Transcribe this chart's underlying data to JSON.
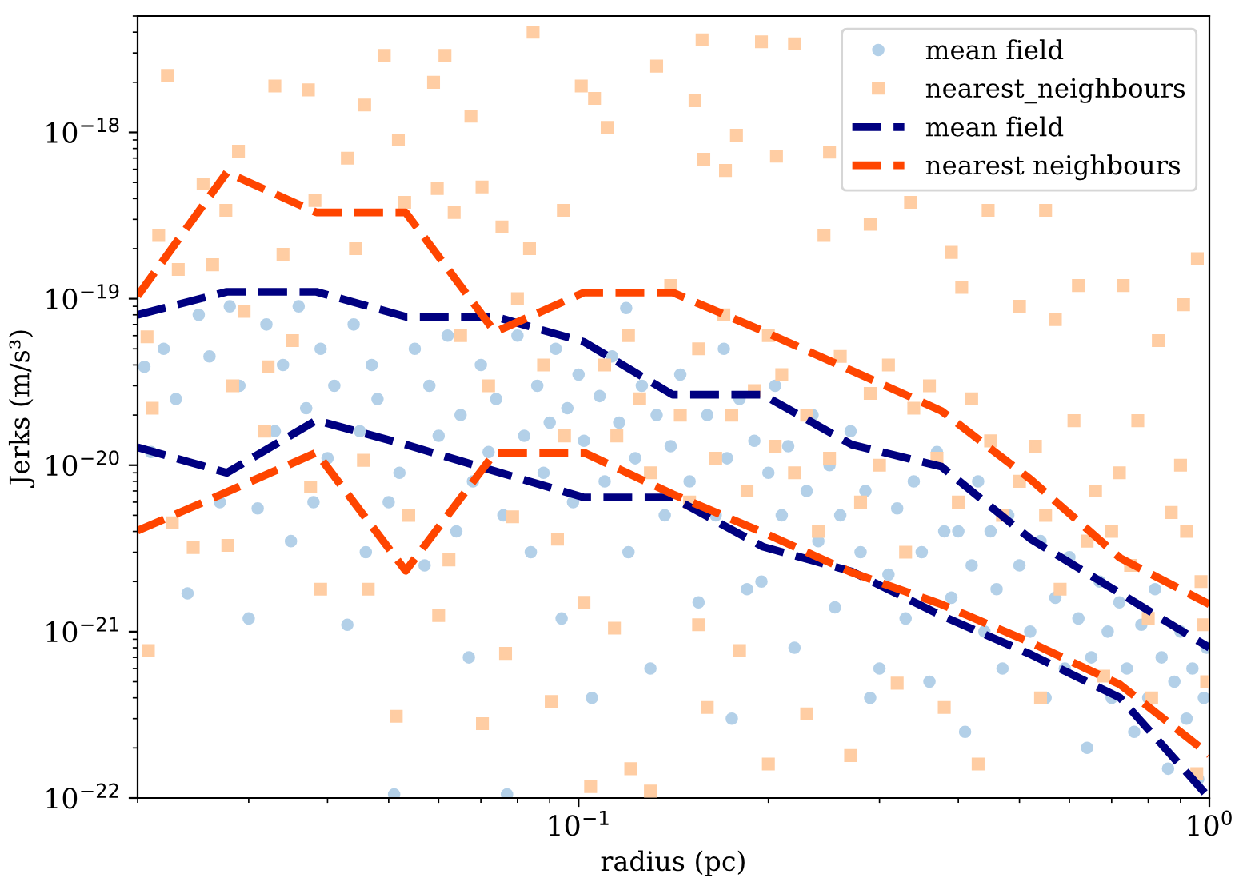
{
  "chart_data": {
    "type": "scatter",
    "xlabel": "radius (pc)",
    "ylabel": "Jerks (m/s³)",
    "log": "xy",
    "xlim": [
      0.02,
      1
    ],
    "ylim": [
      1e-22,
      5e-18
    ],
    "xticks": [
      {
        "value": 0.1,
        "label": "10$^{−1}$"
      },
      {
        "value": 1,
        "label": "10$^{0}$"
      }
    ],
    "yticks": [
      {
        "value": 1e-22,
        "label": "10$^{−22}$"
      },
      {
        "value": 1e-21,
        "label": "10$^{−21}$"
      },
      {
        "value": 1e-20,
        "label": "10$^{−20}$"
      },
      {
        "value": 1e-19,
        "label": "10$^{−19}$"
      },
      {
        "value": 1e-18,
        "label": "10$^{−18}$"
      }
    ],
    "legend": "top right",
    "series": [
      {
        "name": "mean field",
        "marker": "circle",
        "color": "#b3d0e8",
        "x": [
          0.0205,
          0.021,
          0.022,
          0.023,
          0.024,
          0.025,
          0.026,
          0.027,
          0.028,
          0.029,
          0.03,
          0.031,
          0.032,
          0.033,
          0.034,
          0.035,
          0.036,
          0.037,
          0.038,
          0.039,
          0.04,
          0.041,
          0.043,
          0.044,
          0.045,
          0.046,
          0.047,
          0.048,
          0.05,
          0.051,
          0.052,
          0.055,
          0.057,
          0.058,
          0.06,
          0.062,
          0.064,
          0.065,
          0.067,
          0.068,
          0.07,
          0.072,
          0.074,
          0.076,
          0.077,
          0.08,
          0.082,
          0.084,
          0.086,
          0.088,
          0.09,
          0.092,
          0.094,
          0.096,
          0.098,
          0.1,
          0.102,
          0.105,
          0.108,
          0.11,
          0.113,
          0.116,
          0.119,
          0.12,
          0.123,
          0.126,
          0.13,
          0.133,
          0.137,
          0.14,
          0.145,
          0.15,
          0.155,
          0.16,
          0.165,
          0.17,
          0.172,
          0.175,
          0.18,
          0.185,
          0.19,
          0.195,
          0.2,
          0.205,
          0.21,
          0.215,
          0.22,
          0.23,
          0.235,
          0.24,
          0.25,
          0.255,
          0.26,
          0.27,
          0.28,
          0.285,
          0.29,
          0.3,
          0.31,
          0.32,
          0.33,
          0.34,
          0.35,
          0.36,
          0.37,
          0.38,
          0.39,
          0.4,
          0.41,
          0.42,
          0.43,
          0.44,
          0.45,
          0.46,
          0.47,
          0.48,
          0.5,
          0.52,
          0.54,
          0.55,
          0.57,
          0.59,
          0.6,
          0.62,
          0.64,
          0.65,
          0.67,
          0.69,
          0.7,
          0.72,
          0.74,
          0.76,
          0.78,
          0.8,
          0.82,
          0.84,
          0.86,
          0.88,
          0.9,
          0.92,
          0.94,
          0.96,
          0.98,
          0.99
        ],
        "values": [
          3.9e-20,
          1.2e-20,
          5e-20,
          2.5e-20,
          1.7e-21,
          8e-20,
          4.5e-20,
          6e-21,
          9e-20,
          3e-20,
          1.2e-21,
          5.5e-21,
          7e-20,
          1.6e-20,
          4e-20,
          3.5e-21,
          9e-20,
          2.2e-20,
          6e-21,
          5e-20,
          1.1e-20,
          3e-20,
          1.1e-21,
          7e-20,
          1.6e-20,
          3e-21,
          4e-20,
          2.5e-20,
          6e-21,
          1.05e-22,
          9e-21,
          5e-20,
          2.5e-21,
          3e-20,
          1.5e-20,
          6e-20,
          4e-21,
          2e-20,
          7e-22,
          8e-21,
          4e-20,
          1.2e-20,
          2.5e-20,
          5e-21,
          1.05e-22,
          6e-20,
          1.5e-20,
          3e-21,
          3e-20,
          9e-21,
          1.8e-20,
          5e-20,
          1.2e-21,
          2.2e-20,
          6e-21,
          3.5e-20,
          1.4e-20,
          4e-22,
          2.6e-20,
          8e-21,
          4.5e-20,
          1.8e-20,
          8.8e-20,
          3e-21,
          1.1e-20,
          3e-20,
          6e-22,
          2e-20,
          5e-21,
          1.3e-20,
          3.5e-20,
          8e-21,
          1.5e-21,
          2e-20,
          5e-21,
          5e-20,
          1.1e-20,
          3e-22,
          2.5e-20,
          1.8e-21,
          1.4e-20,
          2e-21,
          9e-21,
          3e-20,
          5e-21,
          1.3e-20,
          8e-22,
          7e-21,
          2e-20,
          3.5e-21,
          1e-20,
          1.4e-21,
          5e-21,
          1.6e-20,
          3e-21,
          7e-21,
          4e-22,
          6e-22,
          2.2e-21,
          5.5e-21,
          1.2e-21,
          8e-21,
          3e-21,
          5e-22,
          1.2e-20,
          4e-21,
          1.6e-21,
          4e-21,
          2.5e-22,
          2.5e-21,
          8e-21,
          1e-21,
          4e-21,
          1.8e-21,
          6e-22,
          5e-21,
          2.5e-21,
          1e-21,
          3.5e-21,
          4e-22,
          1.6e-21,
          6e-22,
          2.8e-21,
          1.2e-21,
          2e-22,
          7e-22,
          2e-21,
          1e-21,
          4e-22,
          1.5e-21,
          6e-22,
          2.5e-22,
          1.1e-21,
          4e-22,
          1.8e-21,
          7e-22,
          1.5e-22,
          5e-22,
          1e-21,
          3e-22,
          6e-22,
          1.3e-22,
          4e-22,
          8e-22
        ]
      },
      {
        "name": "nearest_neighbours",
        "marker": "square",
        "color": "#ffcda3",
        "x": [
          0.0207,
          0.0208,
          0.0211,
          0.0216,
          0.0223,
          0.0227,
          0.0232,
          0.0245,
          0.0254,
          0.0263,
          0.0276,
          0.0278,
          0.0283,
          0.0289,
          0.0295,
          0.0318,
          0.0322,
          0.033,
          0.034,
          0.0352,
          0.0373,
          0.0376,
          0.0382,
          0.039,
          0.043,
          0.0443,
          0.0456,
          0.0458,
          0.0464,
          0.0492,
          0.0514,
          0.0518,
          0.053,
          0.0538,
          0.0589,
          0.0597,
          0.06,
          0.0614,
          0.0623,
          0.0635,
          0.065,
          0.0675,
          0.0703,
          0.0704,
          0.072,
          0.0756,
          0.0766,
          0.0786,
          0.08,
          0.0836,
          0.0847,
          0.088,
          0.0905,
          0.0926,
          0.0946,
          0.095,
          0.101,
          0.102,
          0.1045,
          0.106,
          0.111,
          0.133,
          0.153,
          0.157,
          0.158,
          0.171,
          0.178,
          0.195,
          0.206,
          0.22,
          0.245,
          0.25,
          0.29,
          0.336,
          0.39,
          0.405,
          0.446,
          0.5,
          0.55,
          0.57,
          0.62,
          0.73,
          0.83,
          0.91,
          0.957,
          0.114,
          0.121,
          0.13,
          0.155,
          0.16,
          0.18,
          0.2,
          0.23,
          0.27,
          0.32,
          0.38,
          0.43,
          0.54,
          0.68,
          0.81,
          0.955,
          0.11,
          0.115,
          0.12,
          0.125,
          0.13,
          0.14,
          0.145,
          0.15,
          0.155,
          0.165,
          0.17,
          0.175,
          0.185,
          0.19,
          0.2,
          0.205,
          0.21,
          0.22,
          0.23,
          0.24,
          0.25,
          0.26,
          0.28,
          0.29,
          0.3,
          0.31,
          0.33,
          0.34,
          0.36,
          0.37,
          0.4,
          0.42,
          0.45,
          0.47,
          0.5,
          0.53,
          0.55,
          0.58,
          0.61,
          0.64,
          0.66,
          0.7,
          0.72,
          0.75,
          0.77,
          0.8,
          0.87,
          0.9,
          0.92,
          0.97,
          0.98,
          0.99
        ],
        "values": [
          5.9e-20,
          7.7e-22,
          2.2e-20,
          2.4e-19,
          2.2e-18,
          4.5e-21,
          1.5e-19,
          3.2e-21,
          4.9e-19,
          1.6e-19,
          3.4e-19,
          3.3e-21,
          3e-20,
          7.7e-19,
          8.4e-20,
          1.6e-20,
          3.9e-20,
          1.9e-18,
          1.85e-19,
          5.6e-20,
          1.8e-18,
          7.4e-21,
          3.9e-19,
          1.8e-21,
          7e-19,
          2e-19,
          1.07e-20,
          1.46e-18,
          1.8e-21,
          2.9e-18,
          3.1e-22,
          9e-19,
          3.8e-19,
          5e-21,
          2e-18,
          4.6e-19,
          1.25e-21,
          2.9e-18,
          2.7e-21,
          3.3e-19,
          6e-20,
          1.25e-18,
          4.7e-19,
          2.8e-22,
          3e-20,
          2.7e-19,
          7.4e-22,
          4.9e-21,
          1e-19,
          2e-19,
          4e-18,
          4e-20,
          3.8e-22,
          3.6e-21,
          3.4e-19,
          1.5e-20,
          1.9e-18,
          1.5e-21,
          1.17e-22,
          1.6e-18,
          1.07e-18,
          2.5e-18,
          1.55e-18,
          3.6e-18,
          6.9e-19,
          5.9e-19,
          9.6e-19,
          3.5e-18,
          7.2e-19,
          3.4e-18,
          2.4e-19,
          7.6e-19,
          2.8e-19,
          3.8e-19,
          1.9e-19,
          1.17e-19,
          3.4e-19,
          9e-20,
          3.4e-19,
          7.5e-20,
          1.2e-19,
          1.2e-19,
          5.6e-20,
          9.2e-20,
          1.74e-19,
          1.05e-21,
          1.5e-22,
          1.1e-22,
          1.1e-21,
          3.5e-22,
          7.7e-22,
          1.6e-22,
          3.2e-22,
          1.8e-22,
          4.9e-22,
          3.5e-22,
          1.6e-22,
          4e-22,
          5.4e-22,
          4e-22,
          1.4e-22,
          4e-20,
          1.5e-20,
          6e-20,
          2.5e-20,
          9e-21,
          1.2e-19,
          2e-20,
          6e-21,
          5e-20,
          1.1e-20,
          8e-20,
          2e-20,
          7e-21,
          2.8e-20,
          6e-20,
          1.3e-20,
          3.5e-20,
          9e-21,
          2e-20,
          4e-21,
          1.1e-20,
          4.5e-20,
          6e-21,
          2.7e-20,
          1e-20,
          4e-20,
          3e-21,
          2.2e-20,
          3e-20,
          1.1e-20,
          6e-21,
          2.5e-20,
          1.4e-20,
          5e-21,
          8e-21,
          1.3e-20,
          5e-21,
          1.8e-21,
          1.85e-20,
          3.5e-21,
          7e-21,
          4e-21,
          9e-21,
          2.5e-21,
          1.85e-20,
          1.2e-21,
          5.2e-21,
          1e-20,
          4e-21,
          2e-21,
          1.1e-21,
          5e-22
        ]
      },
      {
        "name": "mean field",
        "type": "line",
        "marker": "none",
        "line_style": "dashed",
        "color": "#000080",
        "x": [
          0.02,
          0.0277,
          0.0384,
          0.0532,
          0.0737,
          0.102,
          0.141,
          0.196,
          0.271,
          0.376,
          0.521,
          0.722,
          1
        ],
        "values": [
          8e-20,
          1.1e-19,
          1.1e-19,
          7.8e-20,
          7.8e-20,
          5.5e-20,
          2.65e-20,
          2.65e-20,
          1.33e-20,
          9.8e-21,
          3.6e-21,
          1.7e-21,
          8e-22
        ]
      },
      {
        "name": "nearest neighbours",
        "type": "line",
        "marker": "none",
        "line_style": "dashed",
        "color": "#ff4500",
        "x": [
          0.02,
          0.0277,
          0.0384,
          0.0532,
          0.0737,
          0.102,
          0.141,
          0.196,
          0.271,
          0.376,
          0.521,
          0.722,
          1
        ],
        "values": [
          1.04e-19,
          5.75e-19,
          3.3e-19,
          3.3e-19,
          6.3e-20,
          1.09e-19,
          1.09e-19,
          6.4e-20,
          3.7e-20,
          2.12e-20,
          8.2e-21,
          2.77e-21,
          1.46e-21
        ]
      },
      {
        "type": "line",
        "marker": "none",
        "line_style": "dashed",
        "color": "#000080",
        "x": [
          0.02,
          0.0277,
          0.0384,
          0.0532,
          0.0737,
          0.102,
          0.141,
          0.196,
          0.271,
          0.376,
          0.521,
          0.722,
          1
        ],
        "values": [
          1.28e-20,
          9e-21,
          1.86e-20,
          1.33e-20,
          9.2e-21,
          6.4e-21,
          6.4e-21,
          3.24e-21,
          2.3e-21,
          1.25e-21,
          7.3e-22,
          4e-22,
          1e-22
        ]
      },
      {
        "type": "line",
        "marker": "none",
        "line_style": "dashed",
        "color": "#ff4500",
        "x": [
          0.02,
          0.0277,
          0.0384,
          0.0532,
          0.0737,
          0.102,
          0.141,
          0.196,
          0.271,
          0.376,
          0.521,
          0.722,
          1
        ],
        "values": [
          4.04e-21,
          6.9e-21,
          1.19e-20,
          2.32e-21,
          1.19e-20,
          1.19e-20,
          6.7e-21,
          3.95e-21,
          2.27e-21,
          1.46e-21,
          8.6e-22,
          4.8e-22,
          1.82e-22
        ]
      }
    ]
  }
}
